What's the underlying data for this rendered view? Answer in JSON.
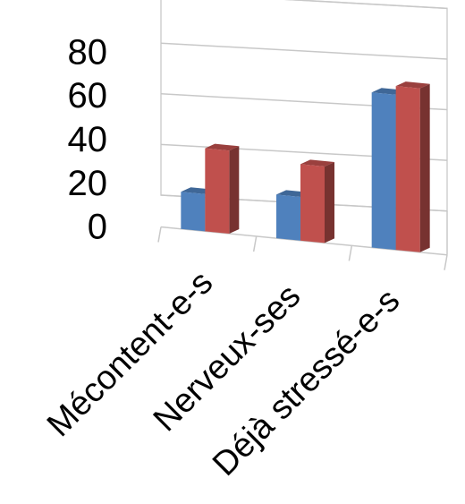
{
  "chart_data": {
    "type": "bar",
    "style": "3d-clustered-column",
    "categories": [
      "Mécontent-e-s",
      "Nerveux-ses",
      "Déjà stressé-e-s"
    ],
    "series": [
      {
        "values": [
          17,
          20,
          71
        ],
        "color": "#4F81BD"
      },
      {
        "values": [
          38,
          35,
          75
        ],
        "color": "#C0504D"
      }
    ],
    "yticks": [
      0,
      20,
      40,
      60,
      80
    ],
    "ylim": [
      0,
      80
    ],
    "grid": true,
    "legend": "none",
    "title": "",
    "xlabel": "",
    "ylabel": ""
  }
}
